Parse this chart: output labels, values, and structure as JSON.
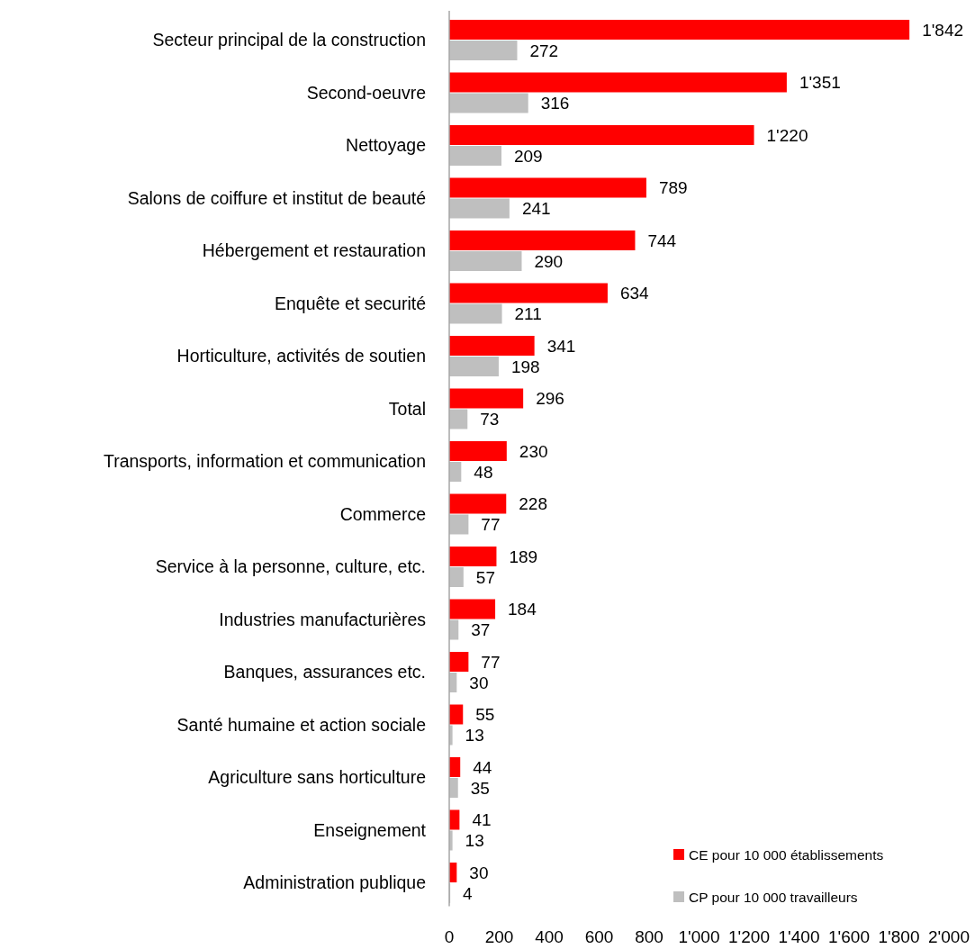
{
  "chart_data": {
    "type": "bar",
    "orientation": "horizontal",
    "categories": [
      "Secteur principal de la construction",
      "Second-oeuvre",
      "Nettoyage",
      "Salons de coiffure et institut de beauté",
      "Hébergement et restauration",
      "Enquête et securité",
      "Horticulture, activités de soutien",
      "Total",
      "Transports, information et communication",
      "Commerce",
      "Service à la personne, culture, etc.",
      "Industries manufacturières",
      "Banques, assurances etc.",
      "Santé humaine et action sociale",
      "Agriculture sans horticulture",
      "Enseignement",
      "Administration publique"
    ],
    "series": [
      {
        "name": "CE pour 10 000 établissements",
        "color": "#ff0000",
        "values": [
          1842,
          1351,
          1220,
          789,
          744,
          634,
          341,
          296,
          230,
          228,
          189,
          184,
          77,
          55,
          44,
          41,
          30
        ],
        "value_labels": [
          "1'842",
          "1'351",
          "1'220",
          "789",
          "744",
          "634",
          "341",
          "296",
          "230",
          "228",
          "189",
          "184",
          "77",
          "55",
          "44",
          "41",
          "30"
        ]
      },
      {
        "name": "CP pour 10 000 travailleurs",
        "color": "#bfbfbf",
        "values": [
          272,
          316,
          209,
          241,
          290,
          211,
          198,
          73,
          48,
          77,
          57,
          37,
          30,
          13,
          35,
          13,
          4
        ],
        "value_labels": [
          "272",
          "316",
          "209",
          "241",
          "290",
          "211",
          "198",
          "73",
          "48",
          "77",
          "57",
          "37",
          "30",
          "13",
          "35",
          "13",
          "4"
        ]
      }
    ],
    "xlim": [
      0,
      2000
    ],
    "xticks": [
      0,
      200,
      400,
      600,
      800,
      {
        "value": 1000,
        "label": "1'000"
      },
      {
        "value": 1200,
        "label": "1'200"
      },
      {
        "value": 1400,
        "label": "1'400"
      },
      {
        "value": 1600,
        "label": "1'600"
      },
      {
        "value": 1800,
        "label": "1'800"
      },
      {
        "value": 2000,
        "label": "2'000"
      }
    ],
    "grid": false,
    "legend": "bottom right"
  }
}
